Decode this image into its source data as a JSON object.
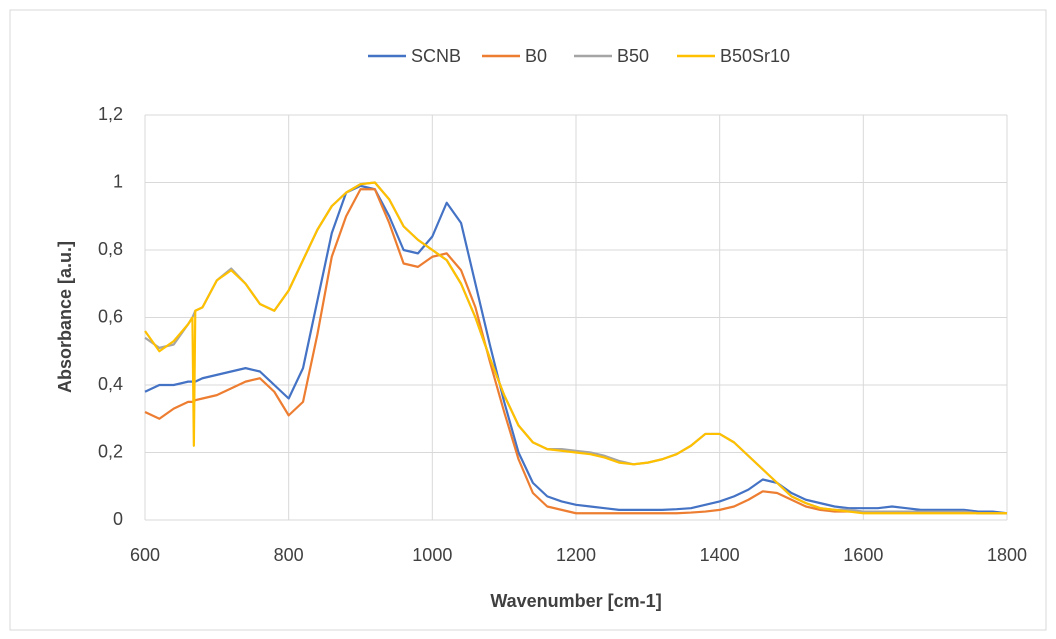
{
  "chart_data": {
    "type": "line",
    "xlabel": "Wavenumber [cm-1]",
    "ylabel": "Absorbance [a.u.]",
    "xlim": [
      600,
      1800
    ],
    "xticks": [
      600,
      800,
      1000,
      1200,
      1400,
      1600,
      1800
    ],
    "ylim": [
      0,
      1.2
    ],
    "yticks": [
      0,
      {
        "value": 0.2,
        "label": "0,2"
      },
      {
        "value": 0.4,
        "label": "0,4"
      },
      {
        "value": 0.6,
        "label": "0,6"
      },
      {
        "value": 0.8,
        "label": "0,8"
      },
      1,
      {
        "value": 1.2,
        "label": "1,2"
      }
    ],
    "grid": true,
    "legend": "top",
    "x": [
      600,
      620,
      640,
      660,
      666,
      668,
      670,
      680,
      700,
      720,
      740,
      760,
      780,
      800,
      820,
      840,
      860,
      880,
      900,
      920,
      940,
      960,
      980,
      1000,
      1020,
      1040,
      1060,
      1080,
      1100,
      1120,
      1140,
      1160,
      1180,
      1200,
      1220,
      1240,
      1260,
      1280,
      1300,
      1320,
      1340,
      1360,
      1380,
      1400,
      1420,
      1440,
      1460,
      1480,
      1500,
      1520,
      1540,
      1560,
      1580,
      1600,
      1620,
      1640,
      1660,
      1680,
      1700,
      1720,
      1740,
      1760,
      1780,
      1800
    ],
    "series": [
      {
        "name": "SCNB",
        "color": "#4472c4",
        "values": [
          0.38,
          0.4,
          0.4,
          0.41,
          0.41,
          0.41,
          0.41,
          0.42,
          0.43,
          0.44,
          0.45,
          0.44,
          0.4,
          0.36,
          0.45,
          0.65,
          0.85,
          0.97,
          0.99,
          0.98,
          0.9,
          0.8,
          0.79,
          0.84,
          0.94,
          0.88,
          0.7,
          0.52,
          0.35,
          0.2,
          0.11,
          0.07,
          0.055,
          0.045,
          0.04,
          0.035,
          0.03,
          0.03,
          0.03,
          0.03,
          0.032,
          0.035,
          0.045,
          0.055,
          0.07,
          0.09,
          0.12,
          0.11,
          0.08,
          0.06,
          0.05,
          0.04,
          0.035,
          0.035,
          0.035,
          0.04,
          0.035,
          0.03,
          0.03,
          0.03,
          0.03,
          0.025,
          0.025,
          0.02
        ]
      },
      {
        "name": "B0",
        "color": "#ed7d31",
        "values": [
          0.32,
          0.3,
          0.33,
          0.35,
          0.35,
          0.35,
          0.355,
          0.36,
          0.37,
          0.39,
          0.41,
          0.42,
          0.38,
          0.31,
          0.35,
          0.55,
          0.78,
          0.9,
          0.98,
          0.98,
          0.88,
          0.76,
          0.75,
          0.78,
          0.79,
          0.74,
          0.63,
          0.47,
          0.32,
          0.18,
          0.08,
          0.04,
          0.03,
          0.02,
          0.02,
          0.02,
          0.02,
          0.02,
          0.02,
          0.02,
          0.02,
          0.022,
          0.025,
          0.03,
          0.04,
          0.06,
          0.085,
          0.08,
          0.06,
          0.04,
          0.03,
          0.025,
          0.025,
          0.025,
          0.025,
          0.025,
          0.025,
          0.025,
          0.025,
          0.025,
          0.025,
          0.02,
          0.02,
          0.02
        ]
      },
      {
        "name": "B50",
        "color": "#a5a5a5",
        "values": [
          0.54,
          0.51,
          0.52,
          0.58,
          0.6,
          0.61,
          0.62,
          0.63,
          0.71,
          0.745,
          0.7,
          0.64,
          0.62,
          0.68,
          0.77,
          0.86,
          0.93,
          0.97,
          0.995,
          1.0,
          0.95,
          0.87,
          0.83,
          0.8,
          0.77,
          0.7,
          0.6,
          0.48,
          0.37,
          0.28,
          0.23,
          0.21,
          0.21,
          0.205,
          0.2,
          0.19,
          0.175,
          0.165,
          0.17,
          0.18,
          0.195,
          0.22,
          0.255,
          0.255,
          0.23,
          0.19,
          0.15,
          0.11,
          0.07,
          0.05,
          0.035,
          0.03,
          0.03,
          0.025,
          0.025,
          0.025,
          0.025,
          0.025,
          0.025,
          0.025,
          0.025,
          0.02,
          0.02,
          0.02
        ]
      },
      {
        "name": "B50Sr10",
        "color": "#ffc000",
        "values": [
          0.56,
          0.5,
          0.53,
          0.58,
          0.6,
          0.22,
          0.62,
          0.63,
          0.71,
          0.74,
          0.7,
          0.64,
          0.62,
          0.68,
          0.77,
          0.86,
          0.93,
          0.97,
          0.995,
          1.0,
          0.95,
          0.87,
          0.83,
          0.8,
          0.77,
          0.7,
          0.6,
          0.48,
          0.37,
          0.28,
          0.23,
          0.21,
          0.205,
          0.2,
          0.195,
          0.185,
          0.17,
          0.165,
          0.17,
          0.18,
          0.195,
          0.22,
          0.255,
          0.255,
          0.23,
          0.19,
          0.15,
          0.11,
          0.07,
          0.05,
          0.035,
          0.03,
          0.025,
          0.02,
          0.02,
          0.02,
          0.02,
          0.02,
          0.02,
          0.02,
          0.02,
          0.02,
          0.02,
          0.02
        ]
      }
    ]
  }
}
